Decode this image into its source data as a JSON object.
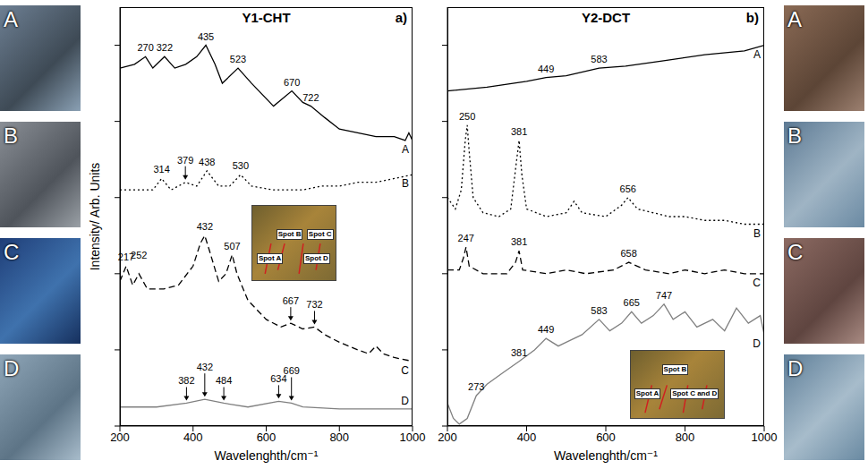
{
  "photos": {
    "left": [
      "A",
      "B",
      "C",
      "D"
    ],
    "right": [
      "A",
      "B",
      "C",
      "D"
    ]
  },
  "chart_data": [
    {
      "type": "line",
      "title": "Y1-CHT",
      "panel_label": "a)",
      "x_label": "Wavelenghth/cm⁻¹",
      "y_label": "Intensity/ Arb. Units",
      "xlim": [
        200,
        1000
      ],
      "xticks": [
        200,
        400,
        600,
        800,
        1000
      ],
      "ylim": [
        0,
        110
      ],
      "yticks": [
        0,
        20,
        40,
        60,
        80,
        100
      ],
      "tick_labels": "x",
      "grid": false,
      "inset": {
        "labels": [
          "Spot A",
          "Spot B",
          "Spot C",
          "Spot D"
        ]
      },
      "series": [
        {
          "name": "A",
          "color": "#000000",
          "line_style": "solid",
          "x": [
            200,
            240,
            270,
            290,
            322,
            350,
            380,
            410,
            435,
            460,
            480,
            523,
            560,
            620,
            670,
            700,
            722,
            760,
            800,
            850,
            900,
            950,
            980,
            990,
            1000
          ],
          "values": [
            94,
            95,
            97,
            94,
            97,
            94,
            95,
            97,
            100,
            95,
            90,
            94,
            90,
            84,
            88,
            85,
            84,
            81,
            78,
            77,
            76,
            76,
            75,
            77,
            75
          ],
          "annotations": [
            270,
            322,
            435,
            523,
            670,
            722
          ],
          "arrow_annotations": []
        },
        {
          "name": "B",
          "color": "#000000",
          "line_style": "dotted",
          "x": [
            200,
            250,
            290,
            314,
            340,
            379,
            410,
            438,
            470,
            500,
            530,
            560,
            620,
            700,
            750,
            800,
            850,
            900,
            950,
            1000
          ],
          "values": [
            62,
            62,
            62,
            65,
            62,
            64,
            63,
            67,
            63,
            63,
            66,
            63,
            62,
            62,
            63,
            63,
            64,
            64,
            65,
            66
          ],
          "annotations": [
            314,
            438,
            530
          ],
          "arrow_annotations": [
            379
          ]
        },
        {
          "name": "C",
          "color": "#000000",
          "line_style": "dashed",
          "x": [
            200,
            217,
            235,
            252,
            275,
            320,
            360,
            400,
            420,
            432,
            445,
            470,
            490,
            507,
            520,
            550,
            600,
            640,
            667,
            700,
            732,
            760,
            800,
            850,
            880,
            900,
            920,
            950,
            1000
          ],
          "values": [
            38,
            42,
            37,
            40,
            36,
            36,
            37,
            42,
            48,
            50,
            46,
            38,
            40,
            45,
            40,
            33,
            28,
            26,
            27,
            25.5,
            26,
            24,
            22,
            20,
            19,
            21,
            19,
            18,
            17
          ],
          "annotations": [
            217,
            252,
            432,
            507
          ],
          "arrow_annotations": [
            667,
            732
          ]
        },
        {
          "name": "D",
          "color": "#808080",
          "line_style": "solid",
          "x": [
            200,
            300,
            382,
            432,
            484,
            550,
            634,
            669,
            700,
            800,
            900,
            1000
          ],
          "values": [
            5,
            5,
            6,
            7,
            6,
            5,
            6.5,
            6,
            5,
            4.5,
            4.5,
            4.5
          ],
          "annotations": [],
          "arrow_annotations": [
            382,
            432,
            484,
            634,
            669
          ]
        }
      ]
    },
    {
      "type": "line",
      "title": "Y2-DCT",
      "panel_label": "b)",
      "x_label": "Wavelenghth/cm⁻¹",
      "xlim": [
        200,
        1000
      ],
      "xticks": [
        200,
        400,
        600,
        800,
        1000
      ],
      "ylim": [
        0,
        110
      ],
      "yticks": [
        0,
        20,
        40,
        60,
        80,
        100
      ],
      "tick_labels": "x",
      "grid": false,
      "inset": {
        "labels": [
          "Spot A",
          "Spot B",
          "Spot C and D"
        ]
      },
      "series": [
        {
          "name": "A",
          "color": "#000000",
          "line_style": "solid",
          "x": [
            200,
            300,
            400,
            449,
            500,
            583,
            650,
            750,
            850,
            950,
            1000
          ],
          "values": [
            88,
            89,
            90.5,
            91.5,
            92,
            94,
            94.5,
            96,
            97.5,
            98.5,
            100
          ],
          "annotations": [
            449,
            583
          ],
          "arrow_annotations": []
        },
        {
          "name": "B",
          "color": "#000000",
          "line_style": "dotted",
          "x": [
            200,
            220,
            235,
            245,
            250,
            255,
            265,
            290,
            330,
            360,
            375,
            381,
            388,
            400,
            450,
            500,
            520,
            540,
            600,
            640,
            656,
            680,
            720,
            760,
            800,
            850,
            900,
            950,
            1000
          ],
          "values": [
            60,
            57,
            62,
            75,
            79,
            72,
            60,
            56,
            55,
            57,
            70,
            75,
            66,
            57,
            55,
            56,
            59,
            56,
            55,
            58,
            60,
            57,
            56,
            55,
            55,
            54,
            54,
            53,
            53
          ],
          "annotations": [
            250,
            381,
            656
          ],
          "arrow_annotations": []
        },
        {
          "name": "C",
          "color": "#000000",
          "line_style": "dashed",
          "x": [
            200,
            230,
            240,
            247,
            255,
            290,
            350,
            372,
            381,
            390,
            450,
            500,
            550,
            620,
            658,
            700,
            760,
            800,
            850,
            900,
            950,
            1000
          ],
          "values": [
            41,
            41,
            44,
            47,
            42,
            40,
            40,
            43,
            46,
            41,
            40,
            41,
            40,
            41,
            43,
            41,
            40,
            41,
            40,
            41,
            40,
            40
          ],
          "annotations": [
            247,
            381,
            658
          ],
          "arrow_annotations": []
        },
        {
          "name": "D",
          "color": "#808080",
          "line_style": "solid",
          "x": [
            200,
            215,
            230,
            250,
            273,
            300,
            340,
            381,
            420,
            449,
            480,
            500,
            540,
            583,
            610,
            640,
            665,
            690,
            720,
            747,
            770,
            800,
            830,
            870,
            900,
            930,
            960,
            990,
            1000
          ],
          "values": [
            6,
            2,
            0.5,
            2,
            8,
            11,
            14,
            17,
            20,
            23,
            21,
            22,
            24,
            28,
            25,
            27,
            30,
            27,
            29,
            32,
            28,
            30,
            26,
            28,
            25,
            31,
            27,
            29,
            24
          ],
          "annotations": [
            273,
            381,
            449,
            583,
            665,
            747
          ],
          "arrow_annotations": []
        }
      ]
    }
  ]
}
